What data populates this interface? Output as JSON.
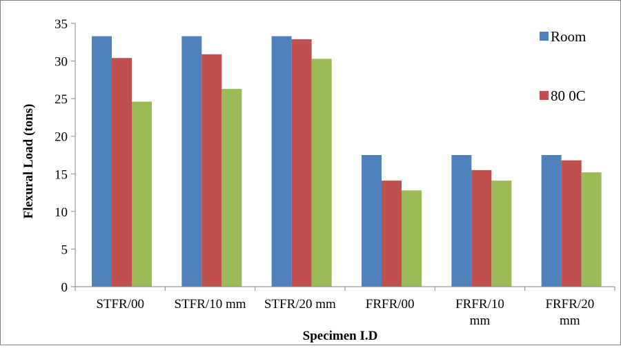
{
  "chart_data": {
    "type": "bar",
    "title": "",
    "xlabel": "Specimen I.D",
    "ylabel": "Flexural Load (tons)",
    "ylim": [
      0,
      35
    ],
    "yticks": [
      0,
      5,
      10,
      15,
      20,
      25,
      30,
      35
    ],
    "grid": false,
    "legend_position": "top-right",
    "categories": [
      [
        "STFR/00"
      ],
      [
        "STFR/10 mm"
      ],
      [
        "STFR/20 mm"
      ],
      [
        "FRFR/00"
      ],
      [
        "FRFR/10",
        "mm"
      ],
      [
        "FRFR/20",
        "mm"
      ]
    ],
    "series": [
      {
        "name": "Room",
        "color": "#4f81bd",
        "values": [
          33.3,
          33.3,
          33.3,
          17.5,
          17.5,
          17.5
        ]
      },
      {
        "name": "80 0C",
        "color": "#c0504d",
        "values": [
          30.4,
          30.9,
          32.9,
          14.1,
          15.5,
          16.8
        ]
      },
      {
        "color": "#9bbb59",
        "values": [
          24.6,
          26.3,
          30.3,
          12.8,
          14.1,
          15.2
        ]
      }
    ]
  }
}
